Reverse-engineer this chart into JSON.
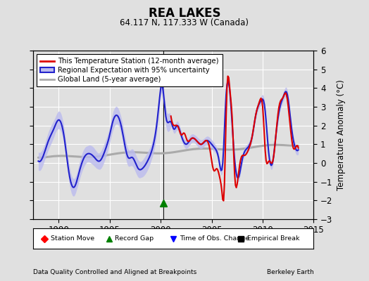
{
  "title": "REA LAKES",
  "subtitle": "64.117 N, 117.333 W (Canada)",
  "xlabel_left": "Data Quality Controlled and Aligned at Breakpoints",
  "xlabel_right": "Berkeley Earth",
  "ylabel": "Temperature Anomaly (°C)",
  "xlim": [
    1987.5,
    2015.0
  ],
  "ylim": [
    -3.0,
    6.0
  ],
  "yticks": [
    -3,
    -2,
    -1,
    0,
    1,
    2,
    3,
    4,
    5,
    6
  ],
  "xticks": [
    1990,
    1995,
    2000,
    2005,
    2010,
    2015
  ],
  "bg_color": "#e0e0e0",
  "plot_bg_color": "#e0e0e0",
  "grid_color": "white",
  "station_color": "#dd0000",
  "regional_color": "#2222cc",
  "regional_fill_color": "#bbbbee",
  "global_color": "#aaaaaa",
  "record_gap_x": 2000.25,
  "record_gap_y": -2.15,
  "legend_items": [
    {
      "label": "This Temperature Station (12-month average)",
      "color": "#dd0000",
      "lw": 2
    },
    {
      "label": "Regional Expectation with 95% uncertainty",
      "color": "#2222cc",
      "lw": 2
    },
    {
      "label": "Global Land (5-year average)",
      "color": "#aaaaaa",
      "lw": 2
    }
  ],
  "marker_legend": [
    {
      "label": "Station Move",
      "color": "red",
      "marker": "D"
    },
    {
      "label": "Record Gap",
      "color": "green",
      "marker": "^"
    },
    {
      "label": "Time of Obs. Change",
      "color": "blue",
      "marker": "v"
    },
    {
      "label": "Empirical Break",
      "color": "black",
      "marker": "s"
    }
  ]
}
